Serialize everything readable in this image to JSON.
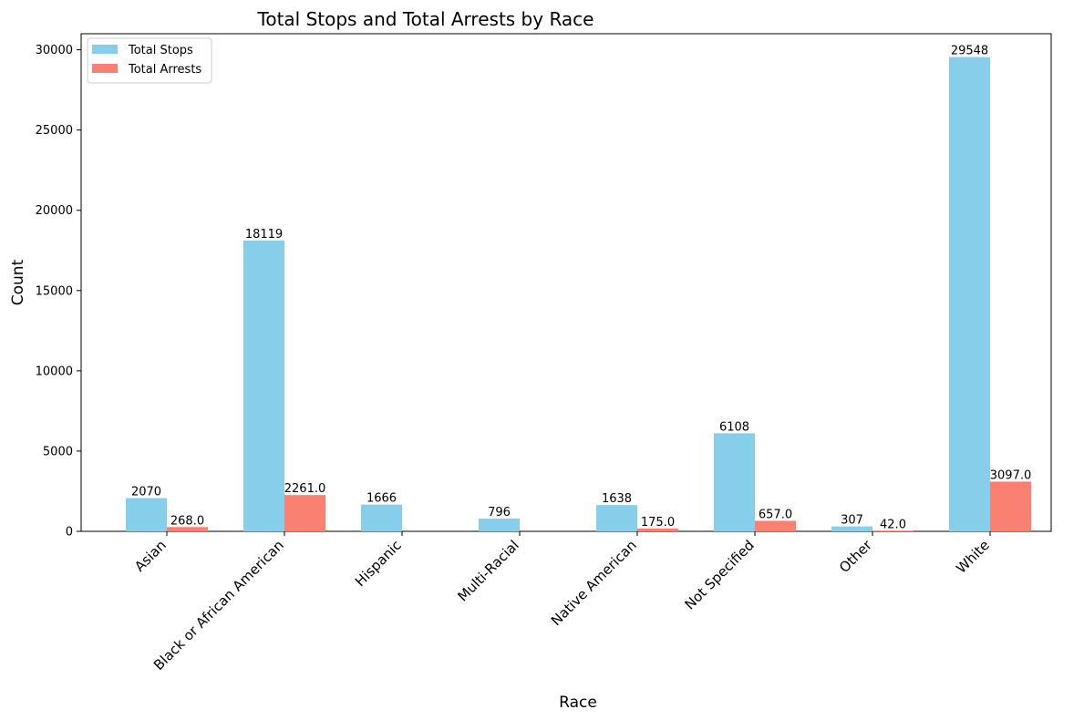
{
  "chart_data": {
    "type": "bar",
    "title": "Total Stops and Total Arrests by Race",
    "xlabel": "Race",
    "ylabel": "Count",
    "ylim": [
      0,
      31000
    ],
    "yticks": [
      0,
      5000,
      10000,
      15000,
      20000,
      25000,
      30000
    ],
    "categories": [
      "Asian",
      "Black or African American",
      "Hispanic",
      "Multi-Racial",
      "Native American",
      "Not Specified",
      "Other",
      "White"
    ],
    "series": [
      {
        "name": "Total Stops",
        "color": "#87CEEB",
        "values": [
          2070,
          18119,
          1666,
          796,
          1638,
          6108,
          307,
          29548
        ],
        "labels": [
          "2070",
          "18119",
          "1666",
          "796",
          "1638",
          "6108",
          "307",
          "29548"
        ]
      },
      {
        "name": "Total Arrests",
        "color": "#FA8072",
        "values": [
          268,
          2261,
          null,
          null,
          175,
          657,
          42,
          3097
        ],
        "labels": [
          "268.0",
          "2261.0",
          null,
          null,
          "175.0",
          "657.0",
          "42.0",
          "3097.0"
        ]
      }
    ],
    "legend_position": "top-left",
    "grid": false
  }
}
